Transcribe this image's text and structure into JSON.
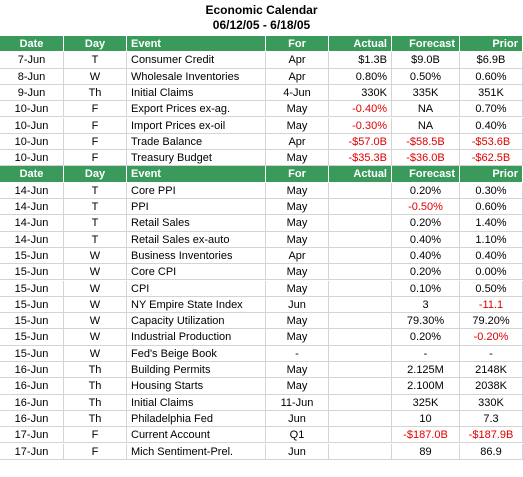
{
  "title": "Economic Calendar",
  "subtitle": "06/12/05 - 6/18/05",
  "sections": [
    {
      "header": [
        "Date",
        "Day",
        "Event",
        "For",
        "Actual",
        "Forecast",
        "Prior"
      ],
      "rows": [
        [
          "7-Jun",
          "T",
          "Consumer Credit",
          "Apr",
          "$1.3B",
          "$9.0B",
          "$6.9B"
        ],
        [
          "8-Jun",
          "W",
          "Wholesale Inventories",
          "Apr",
          "0.80%",
          "0.50%",
          "0.60%"
        ],
        [
          "9-Jun",
          "Th",
          "Initial Claims",
          "4-Jun",
          "330K",
          "335K",
          "351K"
        ],
        [
          "10-Jun",
          "F",
          "Export Prices ex-ag.",
          "May",
          "-0.40%",
          "NA",
          "0.70%"
        ],
        [
          "10-Jun",
          "F",
          "Import Prices ex-oil",
          "May",
          "-0.30%",
          "NA",
          "0.40%"
        ],
        [
          "10-Jun",
          "F",
          "Trade Balance",
          "Apr",
          "-$57.0B",
          "-$58.5B",
          "-$53.6B"
        ],
        [
          "10-Jun",
          "F",
          "Treasury Budget",
          "May",
          "-$35.3B",
          "-$36.0B",
          "-$62.5B"
        ]
      ]
    },
    {
      "header": [
        "Date",
        "Day",
        "Event",
        "For",
        "Actual",
        "Forecast",
        "Prior"
      ],
      "rows": [
        [
          "14-Jun",
          "T",
          "Core PPI",
          "May",
          null,
          "0.20%",
          "0.30%"
        ],
        [
          "14-Jun",
          "T",
          "PPI",
          "May",
          null,
          "-0.50%",
          "0.60%"
        ],
        [
          "14-Jun",
          "T",
          "Retail Sales",
          "May",
          null,
          "0.20%",
          "1.40%"
        ],
        [
          "14-Jun",
          "T",
          "Retail Sales ex-auto",
          "May",
          null,
          "0.40%",
          "1.10%"
        ],
        [
          "15-Jun",
          "W",
          "Business Inventories",
          "Apr",
          null,
          "0.40%",
          "0.40%"
        ],
        [
          "15-Jun",
          "W",
          "Core CPI",
          "May",
          null,
          "0.20%",
          "0.00%"
        ],
        [
          "15-Jun",
          "W",
          "CPI",
          "May",
          null,
          "0.10%",
          "0.50%"
        ],
        [
          "15-Jun",
          "W",
          "NY Empire State Index",
          "Jun",
          null,
          "3",
          "-11.1"
        ],
        [
          "15-Jun",
          "W",
          "Capacity Utilization",
          "May",
          null,
          "79.30%",
          "79.20%"
        ],
        [
          "15-Jun",
          "W",
          "Industrial Production",
          "May",
          null,
          "0.20%",
          "-0.20%"
        ],
        [
          "15-Jun",
          "W",
          "Fed's Beige Book",
          "-",
          null,
          "-",
          "-"
        ],
        [
          "16-Jun",
          "Th",
          "Building Permits",
          "May",
          null,
          "2.125M",
          "2148K"
        ],
        [
          "16-Jun",
          "Th",
          "Housing Starts",
          "May",
          null,
          "2.100M",
          "2038K"
        ],
        [
          "16-Jun",
          "Th",
          "Initial Claims",
          "11-Jun",
          null,
          "325K",
          "330K"
        ],
        [
          "16-Jun",
          "Th",
          "Philadelphia Fed",
          "Jun",
          null,
          "10",
          "7.3"
        ],
        [
          "17-Jun",
          "F",
          "Current Account",
          "Q1",
          null,
          "-$187.0B",
          "-$187.9B"
        ],
        [
          "17-Jun",
          "F",
          "Mich Sentiment-Prel.",
          "Jun",
          null,
          "89",
          "86.9"
        ]
      ]
    }
  ]
}
